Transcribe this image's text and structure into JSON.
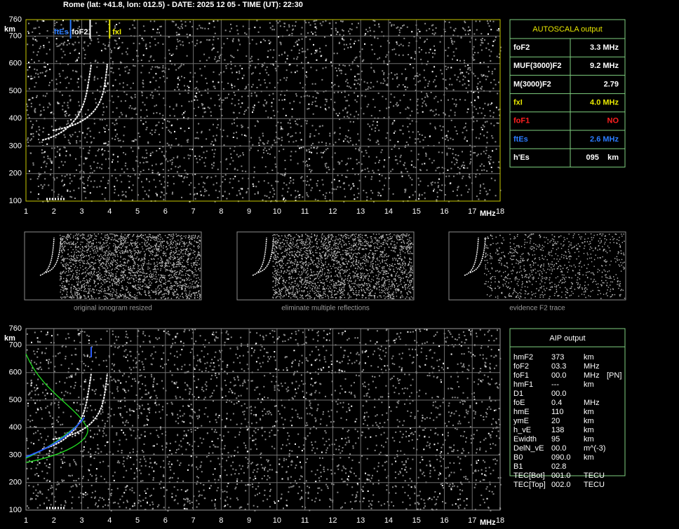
{
  "header": "Rome (lat: +41.8, lon: 012.5) - DATE: 2025 12 05 - TIME (UT): 22:30",
  "top_plot": {
    "y_unit": "km",
    "x_unit": "MHz",
    "xlim": [
      1,
      18
    ],
    "ylim": [
      100,
      760
    ],
    "xticks": [
      1,
      2,
      3,
      4,
      5,
      6,
      7,
      8,
      9,
      10,
      11,
      12,
      13,
      14,
      15,
      16,
      17,
      18
    ],
    "yticks": [
      100,
      200,
      300,
      400,
      500,
      600,
      700,
      760
    ],
    "markers": [
      {
        "label": "ftEs",
        "value": 2.6,
        "color": "#2b7cff"
      },
      {
        "label": "foF2",
        "value": 3.3,
        "color": "#ffffff"
      },
      {
        "label": "fxI",
        "value": 4.0,
        "color": "#e8e800"
      }
    ]
  },
  "autoscala": {
    "title": "AUTOSCALA output",
    "rows": [
      {
        "name": "foF2",
        "value": "3.3 MHz",
        "color": "#ffffff"
      },
      {
        "name": "MUF(3000)F2",
        "value": "9.2 MHz",
        "color": "#ffffff"
      },
      {
        "name": "M(3000)F2",
        "value": "2.79",
        "color": "#ffffff"
      },
      {
        "name": "fxI",
        "value": "4.0 MHz",
        "color": "#e8e800"
      },
      {
        "name": "foF1",
        "value": "NO",
        "color": "#ff2020"
      },
      {
        "name": "ftEs",
        "value": "2.6 MHz",
        "color": "#2b7cff"
      },
      {
        "name": "h'Es",
        "value": "095    km",
        "color": "#ffffff"
      }
    ]
  },
  "thumbnails": [
    "original ionogram resized",
    "eliminate multiple reflections",
    "evidence F2 trace"
  ],
  "bottom_plot": {
    "y_unit": "km",
    "x_unit": "MHz",
    "xlim": [
      1,
      18
    ],
    "ylim": [
      100,
      760
    ],
    "xticks": [
      1,
      2,
      3,
      4,
      5,
      6,
      7,
      8,
      9,
      10,
      11,
      12,
      13,
      14,
      15,
      16,
      17,
      18
    ],
    "yticks": [
      100,
      200,
      300,
      400,
      500,
      600,
      700,
      760
    ]
  },
  "aip": {
    "title": "AIP output",
    "rows": [
      [
        "hmF2",
        "373",
        "km"
      ],
      [
        "foF2",
        "03.3",
        "MHz"
      ],
      [
        "foF1",
        "00.0",
        "MHz",
        "[PN]"
      ],
      [
        "hmF1",
        "---",
        "km"
      ],
      [
        "D1",
        "00.0"
      ],
      [
        "foE",
        "0.4",
        "MHz"
      ],
      [
        "hmE",
        "110",
        "km"
      ],
      [
        "ymE",
        "20",
        "km"
      ],
      [
        "h_vE",
        "138",
        "km"
      ],
      [
        "Ewidth",
        "95",
        "km"
      ],
      [
        "DelN_vE",
        "00.0",
        "m^(-3)"
      ],
      [
        "B0",
        "090.0",
        "km"
      ],
      [
        "B1",
        "02.8"
      ],
      [
        "TEC[Bot]",
        "001.0",
        "TECU"
      ],
      [
        "TEC[Top]",
        "002.0",
        "TECU"
      ]
    ]
  }
}
